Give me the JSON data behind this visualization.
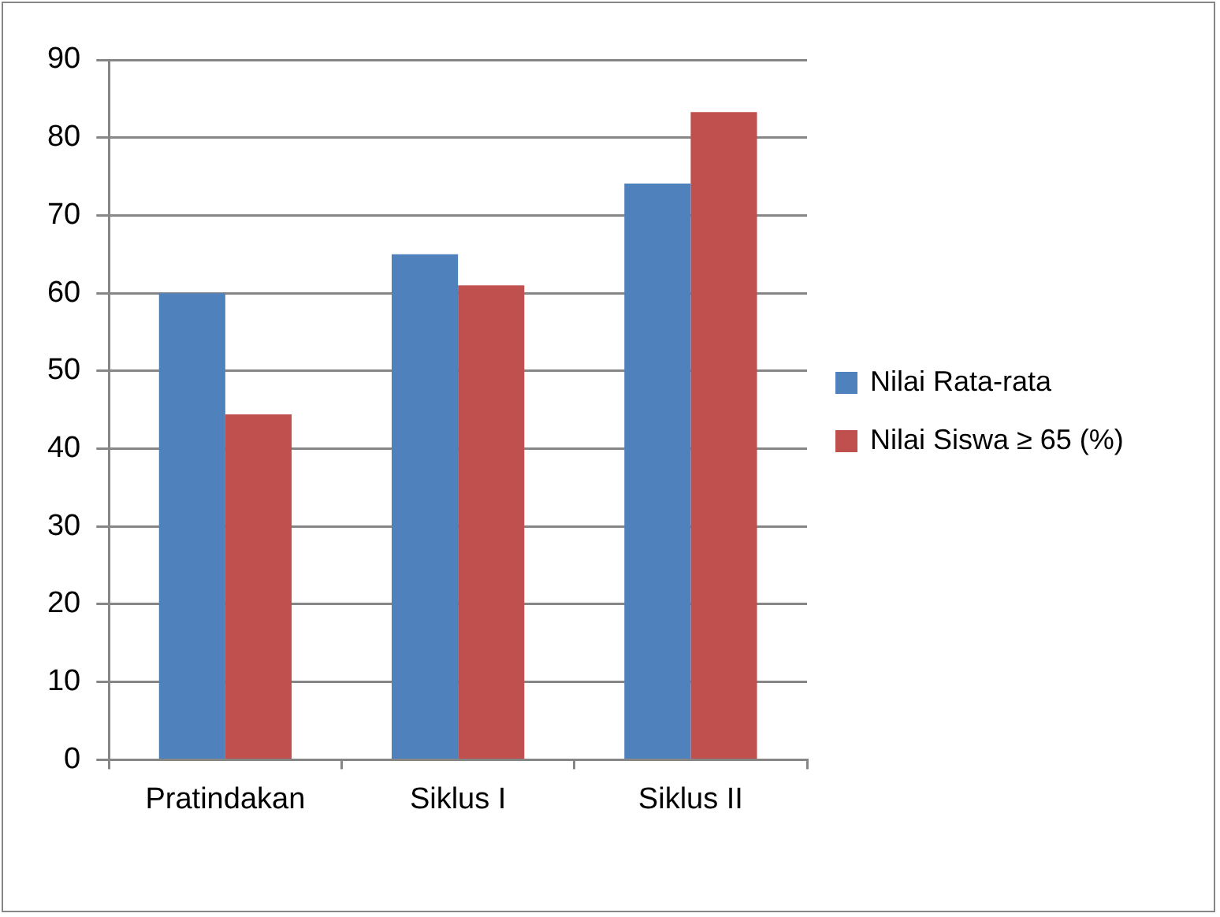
{
  "chart_data": {
    "type": "bar",
    "categories": [
      "Pratindakan",
      "Siklus I",
      "Siklus II"
    ],
    "series": [
      {
        "name": "Nilai Rata-rata",
        "color": "#4f81bd",
        "values": [
          60,
          65,
          74.1
        ]
      },
      {
        "name": "Nilai Siswa ≥ 65 (%)",
        "color": "#c0504d",
        "values": [
          44.4,
          61.0,
          83.3
        ]
      }
    ],
    "ylim": [
      0,
      90
    ],
    "yticks": [
      0,
      10,
      20,
      30,
      40,
      50,
      60,
      70,
      80,
      90
    ],
    "grid": "y",
    "legend": "right"
  }
}
